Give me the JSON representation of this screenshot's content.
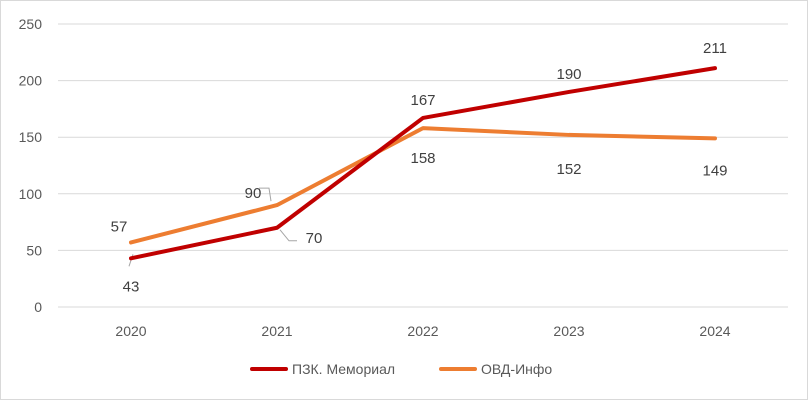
{
  "chart_data": {
    "type": "line",
    "title": "",
    "xlabel": "",
    "ylabel": "",
    "categories": [
      "2020",
      "2021",
      "2022",
      "2023",
      "2024"
    ],
    "ylim": [
      0,
      250
    ],
    "yticks": [
      "0",
      "50",
      "100",
      "150",
      "200",
      "250"
    ],
    "grid": "horizontal",
    "legend": "bottom-center",
    "series": [
      {
        "name": "ПЗК. Мемориал",
        "color": "#c00000",
        "values": [
          43,
          70,
          167,
          190,
          211
        ]
      },
      {
        "name": "ОВД-Инфо",
        "color": "#ed7d31",
        "values": [
          57,
          90,
          158,
          152,
          149
        ]
      }
    ]
  }
}
